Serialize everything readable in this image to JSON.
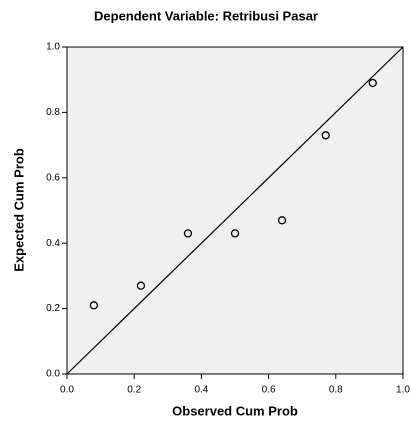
{
  "chart_data": {
    "type": "scatter",
    "title": "Dependent Variable: Retribusi Pasar",
    "x_label": "Observed Cum Prob",
    "y_label": "Expected Cum Prob",
    "x": [
      0.08,
      0.22,
      0.36,
      0.5,
      0.64,
      0.77,
      0.91
    ],
    "values": [
      0.21,
      0.27,
      0.43,
      0.43,
      0.47,
      0.73,
      0.89
    ],
    "xlim": [
      0,
      1
    ],
    "ylim": [
      0,
      1
    ],
    "xticks": [
      {
        "value": 0,
        "label": "0.0"
      },
      0.2,
      0.4,
      0.6,
      0.8,
      {
        "value": 1,
        "label": "1.0"
      }
    ],
    "yticks": [
      {
        "value": 0,
        "label": "0.0"
      },
      0.2,
      0.4,
      0.6,
      0.8,
      {
        "value": 1,
        "label": "1.0"
      }
    ],
    "background": "#f0f0f0",
    "color": "#000000"
  }
}
